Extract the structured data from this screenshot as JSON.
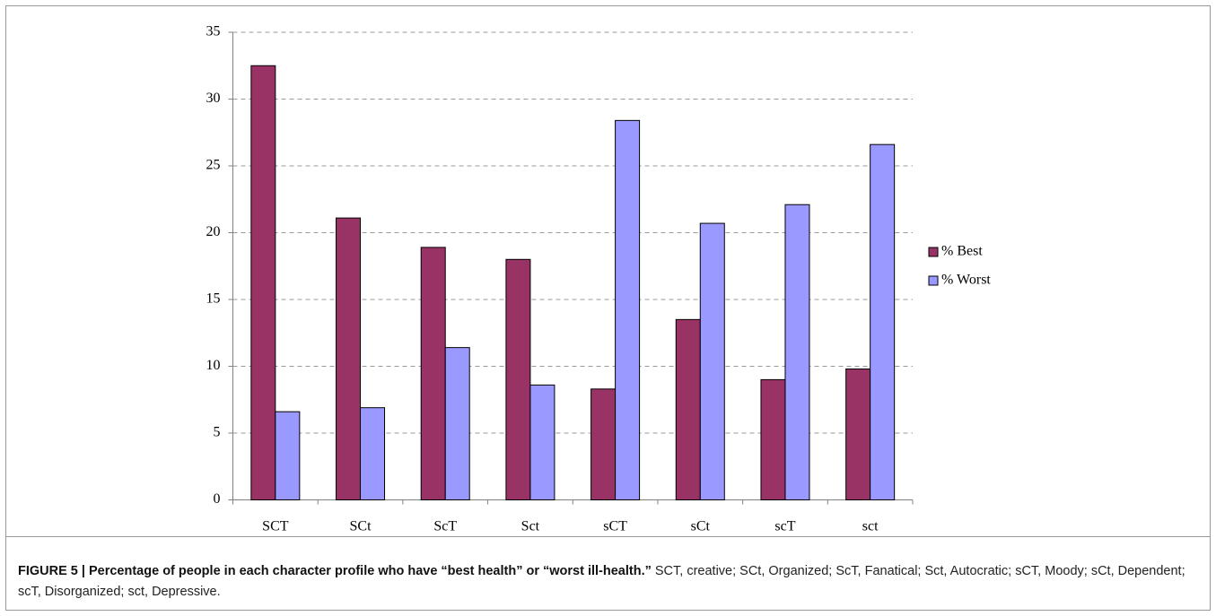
{
  "chart_data": {
    "type": "bar",
    "categories": [
      "SCT",
      "SCt",
      "ScT",
      "Sct",
      "sCT",
      "sCt",
      "scT",
      "sct"
    ],
    "series": [
      {
        "name": "% Best",
        "color": "#993366",
        "values": [
          32.5,
          21.1,
          18.9,
          18.0,
          8.3,
          13.5,
          9.0,
          9.8
        ]
      },
      {
        "name": "% Worst",
        "color": "#9999ff",
        "values": [
          6.6,
          6.9,
          11.4,
          8.6,
          28.4,
          20.7,
          22.1,
          26.6
        ]
      }
    ],
    "ylim": [
      0,
      35
    ],
    "yticks": [
      0,
      5,
      10,
      15,
      20,
      25,
      30,
      35
    ],
    "grid": true,
    "legend": "right"
  },
  "caption": {
    "label": "FIGURE 5 | Percentage of people in each character profile who have “best health” or “worst ill-health.”",
    "text": "SCT, creative; SCt, Organized; ScT, Fanatical; Sct, Autocratic; sCT, Moody; sCt, Dependent; scT, Disorganized; sct, Depressive."
  }
}
